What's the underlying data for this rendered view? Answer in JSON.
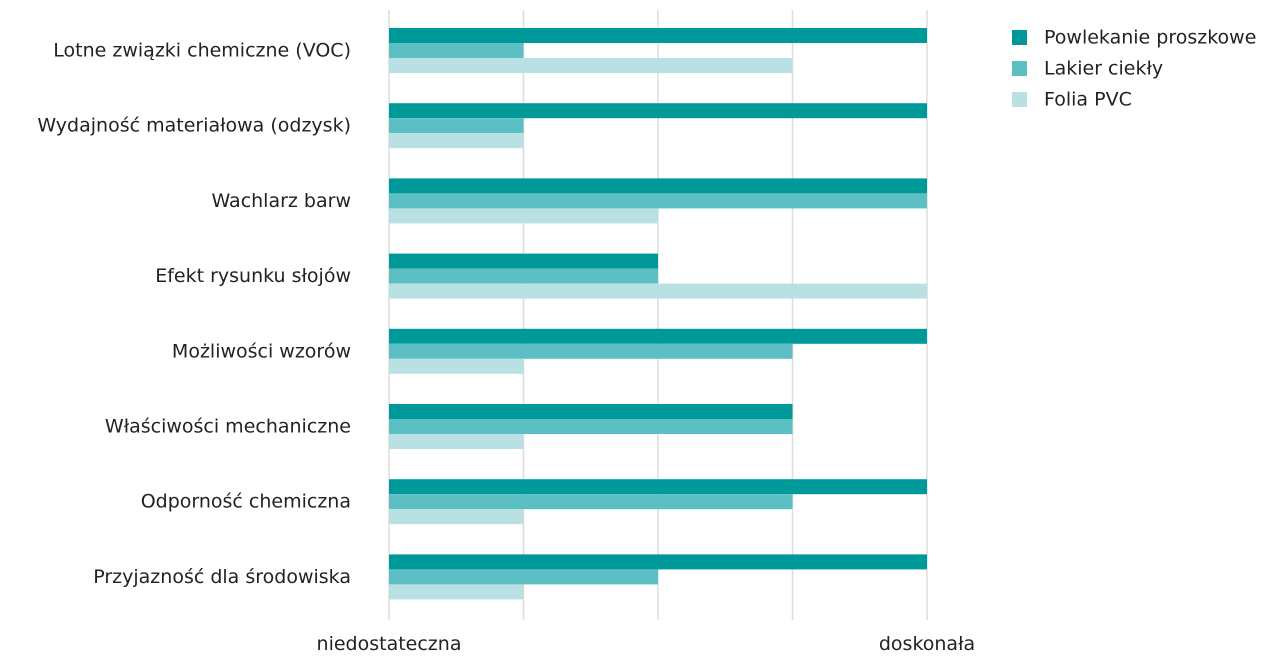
{
  "chart_data": {
    "type": "bar",
    "orientation": "horizontal",
    "categories": [
      "Lotne związki chemiczne (VOC)",
      "Wydajność materiałowa (odzysk)",
      "Wachlarz barw",
      "Efekt rysunku słojów",
      "Możliwości wzorów",
      "Właściwości mechaniczne",
      "Odporność chemiczna",
      "Przyjazność dla środowiska"
    ],
    "series": [
      {
        "name": "Powlekanie proszkowe",
        "color": "#00999a",
        "values": [
          4,
          4,
          4,
          2,
          4,
          3,
          4,
          4
        ]
      },
      {
        "name": "Lakier ciekły",
        "color": "#5bbfc3",
        "values": [
          1,
          1,
          4,
          2,
          3,
          3,
          3,
          2
        ]
      },
      {
        "name": "Folia PVC",
        "color": "#b9e1e3",
        "values": [
          3,
          1,
          2,
          4,
          1,
          1,
          1,
          1
        ]
      }
    ],
    "xlim": [
      0,
      4
    ],
    "grid": true,
    "legend_position": "top-right",
    "x_tick_labels": [
      {
        "value": 0,
        "label": "niedostateczna"
      },
      {
        "value": 4,
        "label": "doskonała"
      }
    ],
    "title": "",
    "xlabel": "",
    "ylabel": ""
  }
}
